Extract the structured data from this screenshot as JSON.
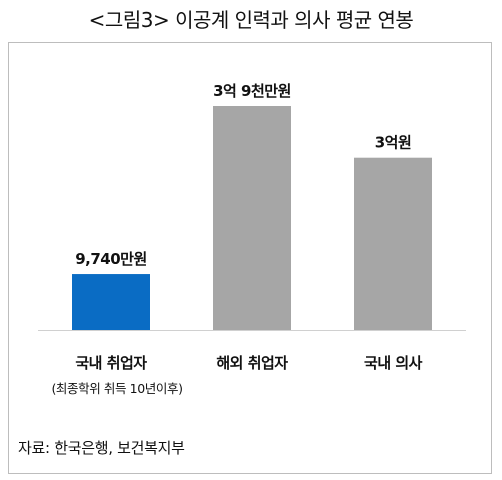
{
  "title": "<그림3> 이공계 인력과 의사 평균 연봉",
  "chart_data": {
    "type": "bar",
    "categories": [
      "국내 취업자",
      "해외 취업자",
      "국내 의사"
    ],
    "category_note": "(최종학위 취득 10년이후)",
    "values": [
      9740,
      39000,
      30000
    ],
    "value_labels": [
      "9,740만원",
      "3억 9천만원",
      "3억원"
    ],
    "unit": "만원",
    "colors": [
      "#0a6cc4",
      "#a6a6a6",
      "#a6a6a6"
    ]
  },
  "source": "자료:  한국은행,  보건복지부"
}
